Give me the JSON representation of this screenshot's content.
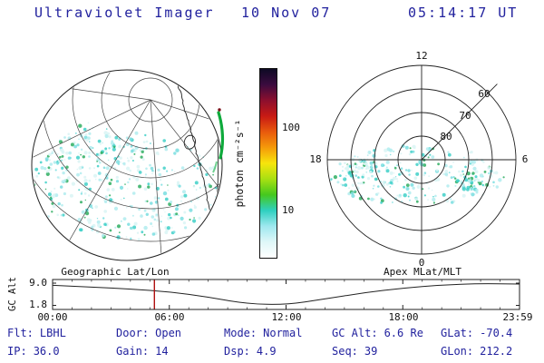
{
  "header": {
    "title": "Ultraviolet Imager",
    "date": "10 Nov 07",
    "time": "05:14:17 UT"
  },
  "colorbar": {
    "label": "photon cm⁻²s⁻¹",
    "tick_100": "100",
    "tick_10": "10",
    "gradient_top_to_bottom": [
      "#0d0a24",
      "#3b0b3f",
      "#8c0f2e",
      "#c81a14",
      "#e85a0d",
      "#f59a0a",
      "#f7e50c",
      "#a8e012",
      "#45c81e",
      "#2fd0c0",
      "#9fe8ef",
      "#dff7f8",
      "#ffffff"
    ]
  },
  "geo_panel": {
    "label": "Geographic Lat/Lon"
  },
  "apex_panel": {
    "label": "Apex MLat/MLT",
    "mlt_12": "12",
    "mlt_18": "18",
    "mlt_6": "6",
    "mlt_0": "0",
    "mlat_60": "60",
    "mlat_70": "70",
    "mlat_80": "80"
  },
  "timeline": {
    "ylabel": "GC Alt",
    "ytick_top": "9.0",
    "ytick_bottom": "1.8",
    "xticks": [
      "00:00",
      "06:00",
      "12:00",
      "18:00",
      "23:59"
    ]
  },
  "status": {
    "row1": [
      {
        "label": "Flt:",
        "value": "LBHL"
      },
      {
        "label": "Door:",
        "value": "Open"
      },
      {
        "label": "Mode:",
        "value": "Normal"
      },
      {
        "label": "GC Alt:",
        "value": "6.6 Re"
      },
      {
        "label": "GLat:",
        "value": "-70.4"
      }
    ],
    "row2": [
      {
        "label": "IP:",
        "value": "36.0"
      },
      {
        "label": "Gain:",
        "value": "14"
      },
      {
        "label": "Dsp:",
        "value": "4.9"
      },
      {
        "label": "Seq:",
        "value": "39"
      },
      {
        "label": "GLon:",
        "value": "212.2"
      }
    ]
  },
  "colors": {
    "text_navy": "#22229e",
    "plot_line": "#222222",
    "grid_line": "#444444",
    "marker_red": "#b01010",
    "aurora_green": "#0faa3c",
    "aurora_green_light": "#3fc06a",
    "aurora_hotspot": "#7a0f18",
    "scatter_palette": [
      "#d9f5f4",
      "#b0ecee",
      "#7adee0",
      "#3fd0c8",
      "#2fae62"
    ]
  },
  "chart_data": [
    {
      "type": "scatter",
      "title": "Geographic Lat/Lon",
      "projection": "orthographic, southern hemisphere with Antarctic coastline",
      "content": "Diffuse UV photon flux speckle over the polar cap, mostly 1-10 photon cm⁻²s⁻¹ (pale cyan), with a bright auroral arc near 100 photon cm⁻²s⁻¹ on the eastern limb",
      "colorbar": {
        "label": "photon cm⁻²s⁻¹",
        "scale": "log",
        "ticks": [
          10,
          100
        ]
      }
    },
    {
      "type": "scatter",
      "title": "Apex MLat/MLT",
      "rings_mlat": [
        80,
        70,
        60,
        50
      ],
      "mlt_spokes": [
        0,
        6,
        12,
        18
      ],
      "content": "Diffuse UV emission band across roughly 60-75 MLat spanning dawn-dusk, flux mostly 1-10 photon cm⁻²s⁻¹"
    },
    {
      "type": "line",
      "title": "Spacecraft geocentric altitude vs universal time",
      "ylabel": "GC Alt",
      "ylim": [
        1.8,
        9.0
      ],
      "yticks": [
        9.0,
        1.8
      ],
      "xticks": [
        "00:00",
        "06:00",
        "12:00",
        "18:00",
        "23:59"
      ],
      "x_hours": [
        0,
        2,
        4,
        6,
        8,
        10,
        12,
        14,
        16,
        18,
        20,
        22,
        24
      ],
      "y_re": [
        8.3,
        7.7,
        7.1,
        6.2,
        4.5,
        2.3,
        2.0,
        3.9,
        5.9,
        7.4,
        8.4,
        8.9,
        8.7
      ],
      "marker": {
        "label": "current time",
        "ut": "05:14",
        "color": "#b01010"
      }
    }
  ]
}
